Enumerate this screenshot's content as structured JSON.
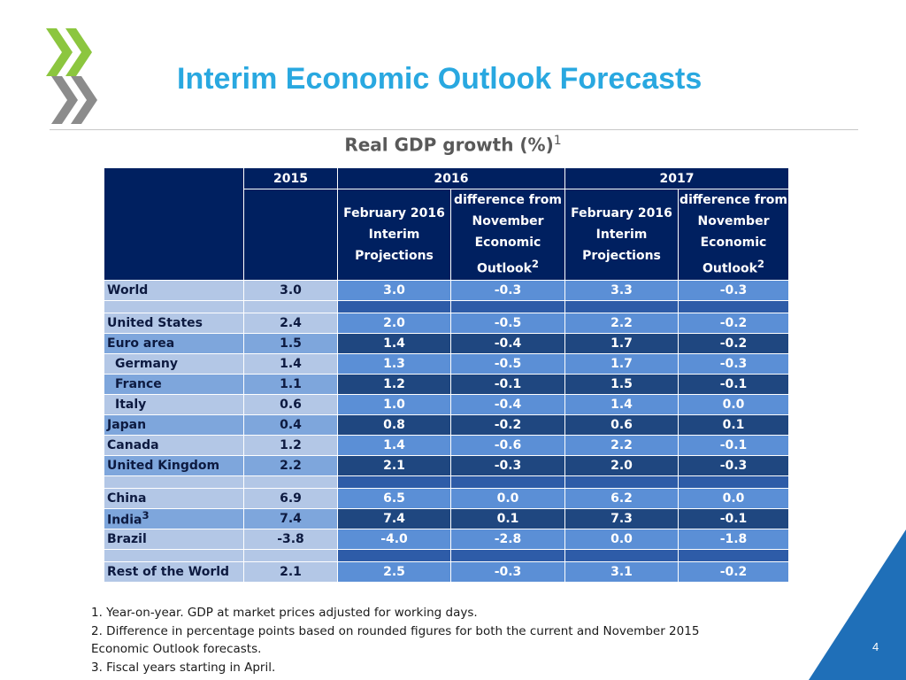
{
  "slide": {
    "title": "Interim Economic Outlook Forecasts",
    "page_number": "4",
    "colors": {
      "title": "#29a8e0",
      "logo_green": "#8cc63f",
      "logo_grey": "#8c8c8c",
      "corner": "#1f6fb8"
    }
  },
  "table": {
    "title": "Real GDP growth (%)",
    "title_note": "1",
    "years": [
      "2015",
      "2016",
      "2017"
    ],
    "sub_headers": {
      "projection": [
        "February 2016",
        "Interim",
        "Projections"
      ],
      "difference": [
        "difference from",
        "November",
        "Economic",
        "Outlook"
      ],
      "difference_note": "2"
    },
    "rows": [
      {
        "label": "World",
        "note": "",
        "v2015": "3.0",
        "p2016": "3.0",
        "d2016": "-0.3",
        "p2017": "3.3",
        "d2017": "-0.3"
      },
      {
        "label": "United States",
        "note": "",
        "v2015": "2.4",
        "p2016": "2.0",
        "d2016": "-0.5",
        "p2017": "2.2",
        "d2017": "-0.2"
      },
      {
        "label": "Euro area",
        "note": "",
        "v2015": "1.5",
        "p2016": "1.4",
        "d2016": "-0.4",
        "p2017": "1.7",
        "d2017": "-0.2"
      },
      {
        "label": "Germany",
        "note": "",
        "v2015": "1.4",
        "p2016": "1.3",
        "d2016": "-0.5",
        "p2017": "1.7",
        "d2017": "-0.3"
      },
      {
        "label": "France",
        "note": "",
        "v2015": "1.1",
        "p2016": "1.2",
        "d2016": "-0.1",
        "p2017": "1.5",
        "d2017": "-0.1"
      },
      {
        "label": "Italy",
        "note": "",
        "v2015": "0.6",
        "p2016": "1.0",
        "d2016": "-0.4",
        "p2017": "1.4",
        "d2017": "0.0"
      },
      {
        "label": "Japan",
        "note": "",
        "v2015": "0.4",
        "p2016": "0.8",
        "d2016": "-0.2",
        "p2017": "0.6",
        "d2017": "0.1"
      },
      {
        "label": "Canada",
        "note": "",
        "v2015": "1.2",
        "p2016": "1.4",
        "d2016": "-0.6",
        "p2017": "2.2",
        "d2017": "-0.1"
      },
      {
        "label": "United Kingdom",
        "note": "",
        "v2015": "2.2",
        "p2016": "2.1",
        "d2016": "-0.3",
        "p2017": "2.0",
        "d2017": "-0.3"
      },
      {
        "label": "China",
        "note": "",
        "v2015": "6.9",
        "p2016": "6.5",
        "d2016": "0.0",
        "p2017": "6.2",
        "d2017": "0.0"
      },
      {
        "label": "India",
        "note": "3",
        "v2015": "7.4",
        "p2016": "7.4",
        "d2016": "0.1",
        "p2017": "7.3",
        "d2017": "-0.1"
      },
      {
        "label": "Brazil",
        "note": "",
        "v2015": "-3.8",
        "p2016": "-4.0",
        "d2016": "-2.8",
        "p2017": "0.0",
        "d2017": "-1.8"
      },
      {
        "label": "Rest of the World",
        "note": "",
        "v2015": "2.1",
        "p2016": "2.5",
        "d2016": "-0.3",
        "p2017": "3.1",
        "d2017": "-0.2"
      }
    ]
  },
  "footnotes": [
    "1. Year-on-year. GDP at market prices adjusted for working days.",
    "2. Difference in percentage points based on rounded figures for both the current and November 2015",
    "Economic Outlook forecasts.",
    "3. Fiscal years starting in April."
  ]
}
